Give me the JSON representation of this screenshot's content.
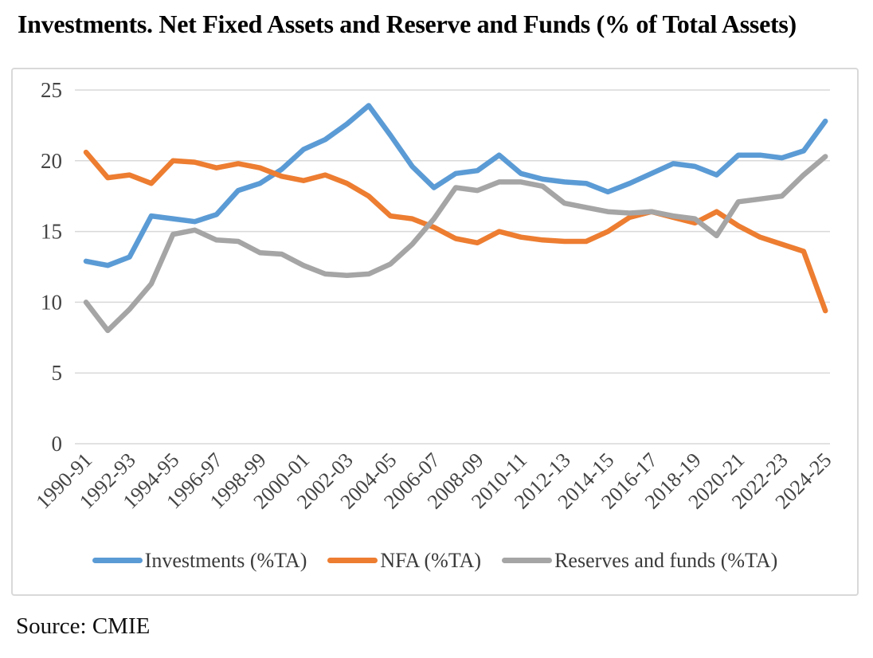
{
  "page": {
    "title": "Investments. Net Fixed Assets and Reserve and Funds (% of Total Assets)",
    "source_note": "Source: CMIE"
  },
  "chart_data": {
    "type": "line",
    "title": "Investments. Net Fixed Assets and Reserve and Funds (% of Total Assets)",
    "xlabel": "",
    "ylabel": "",
    "ylim": [
      0,
      25
    ],
    "yticks": [
      0,
      5,
      10,
      15,
      20,
      25
    ],
    "grid": true,
    "legend_position": "bottom",
    "x_tick_labels": [
      "1990-91",
      "1992-93",
      "1994-95",
      "1996-97",
      "1998-99",
      "2000-01",
      "2002-03",
      "2004-05",
      "2006-07",
      "2008-09",
      "2010-11",
      "2012-13",
      "2014-15",
      "2016-17",
      "2018-19",
      "2020-21",
      "2022-23",
      "2024-25"
    ],
    "categories": [
      "1990-91",
      "1991-92",
      "1992-93",
      "1993-94",
      "1994-95",
      "1995-96",
      "1996-97",
      "1997-98",
      "1998-99",
      "1999-00",
      "2000-01",
      "2001-02",
      "2002-03",
      "2003-04",
      "2004-05",
      "2005-06",
      "2006-07",
      "2007-08",
      "2008-09",
      "2009-10",
      "2010-11",
      "2011-12",
      "2012-13",
      "2013-14",
      "2014-15",
      "2015-16",
      "2016-17",
      "2017-18",
      "2018-19",
      "2019-20",
      "2020-21",
      "2021-22",
      "2022-23",
      "2023-24",
      "2024-25"
    ],
    "series": [
      {
        "name": "Investments (%TA)",
        "color": "#5B9BD5",
        "values": [
          12.9,
          12.6,
          13.2,
          16.1,
          15.9,
          15.7,
          16.2,
          17.9,
          18.4,
          19.4,
          20.8,
          21.5,
          22.6,
          23.9,
          21.8,
          19.6,
          18.1,
          19.1,
          19.3,
          20.4,
          19.1,
          18.7,
          18.5,
          18.4,
          17.8,
          18.4,
          19.1,
          19.8,
          19.6,
          19.0,
          20.4,
          20.4,
          20.2,
          20.7,
          22.8
        ]
      },
      {
        "name": "NFA (%TA)",
        "color": "#ED7D31",
        "values": [
          20.6,
          18.8,
          19.0,
          18.4,
          20.0,
          19.9,
          19.5,
          19.8,
          19.5,
          18.9,
          18.6,
          19.0,
          18.4,
          17.5,
          16.1,
          15.9,
          15.3,
          14.5,
          14.2,
          15.0,
          14.6,
          14.4,
          14.3,
          14.3,
          15.0,
          16.0,
          16.4,
          16.0,
          15.6,
          16.4,
          15.4,
          14.6,
          14.1,
          13.6,
          9.4
        ]
      },
      {
        "name": "Reserves and funds (%TA)",
        "color": "#A5A5A5",
        "values": [
          10.0,
          8.0,
          9.5,
          11.3,
          14.8,
          15.1,
          14.4,
          14.3,
          13.5,
          13.4,
          12.6,
          12.0,
          11.9,
          12.0,
          12.7,
          14.1,
          15.9,
          18.1,
          17.9,
          18.5,
          18.5,
          18.2,
          17.0,
          16.7,
          16.4,
          16.3,
          16.4,
          16.1,
          15.9,
          14.7,
          17.1,
          17.3,
          17.5,
          19.0,
          20.3
        ]
      }
    ],
    "style": {
      "gridline_color": "#d9d9d9",
      "tick_label_color": "#444444",
      "line_width": 6.5
    }
  }
}
